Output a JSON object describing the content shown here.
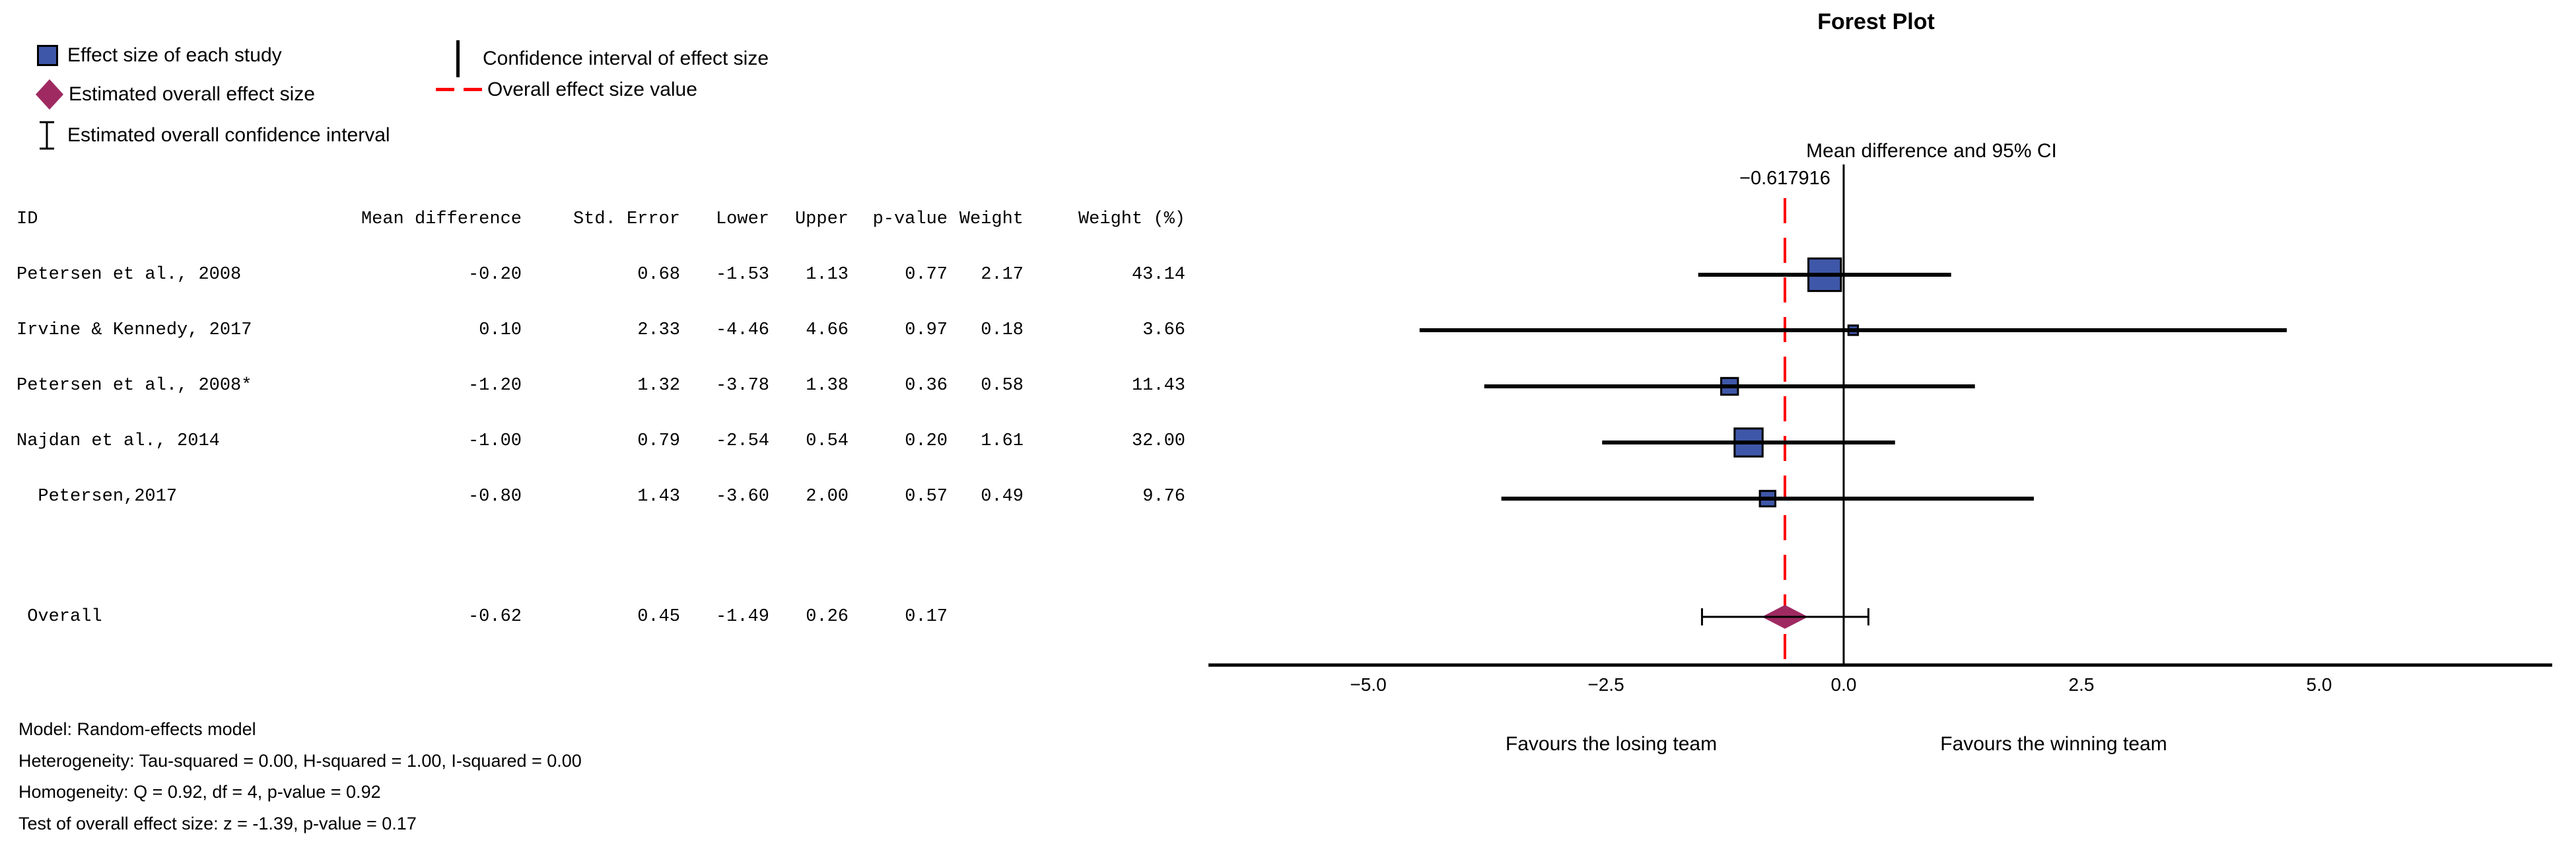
{
  "colors": {
    "study_marker": "#3f57a8",
    "marker_border": "#000000",
    "overall_diamond": "#9f2a62",
    "overall_effect_line": "#ff0000",
    "axis": "#000000"
  },
  "legend": {
    "items": [
      {
        "icon": "blue-square-icon",
        "label": "Effect size of each study"
      },
      {
        "icon": "maroon-diamond-icon",
        "label": "Estimated overall effect size"
      },
      {
        "icon": "i-beam-icon",
        "label": "Estimated overall confidence interval"
      },
      {
        "icon": "vertical-line-icon",
        "label": "Confidence interval of effect size"
      },
      {
        "icon": "red-dashed-line-icon",
        "label": "Overall effect size value"
      }
    ]
  },
  "table": {
    "headers": [
      "ID",
      "Mean difference",
      "Std. Error",
      "Lower",
      "Upper",
      "p-value",
      "Weight",
      "Weight (%)"
    ]
  },
  "stats": {
    "lines": [
      "Model: Random-effects model",
      "Heterogeneity: Tau-squared = 0.00, H-squared = 1.00, I-squared = 0.00",
      "Homogeneity: Q = 0.92, df = 4, p-value = 0.92",
      "Test of overall effect size: z = -1.39, p-value = 0.17"
    ]
  },
  "chart_data": {
    "type": "scatter",
    "subtype": "forest-plot",
    "title": "Forest Plot",
    "effect_label": "Mean difference and 95% CI",
    "overall_value_label": "−0.617916",
    "overall_value": -0.617916,
    "xlabel": "",
    "ylabel": "",
    "xlim": [
      -6.7,
      7.45
    ],
    "grid": false,
    "x_ticks": [
      {
        "value": -5.0,
        "label": "−5.0"
      },
      {
        "value": -2.5,
        "label": "−2.5"
      },
      {
        "value": 0.0,
        "label": "0.0"
      },
      {
        "value": 2.5,
        "label": "2.5"
      },
      {
        "value": 5.0,
        "label": "5.0"
      }
    ],
    "favours_left": "Favours the losing team",
    "favours_right": "Favours the winning team",
    "studies": [
      {
        "id": "Petersen et al., 2008",
        "mean": -0.2,
        "std_error": 0.68,
        "lower": -1.53,
        "upper": 1.13,
        "p_value": 0.77,
        "weight": 2.17,
        "weight_pct": 43.14
      },
      {
        "id": "Irvine & Kennedy, 2017",
        "mean": 0.1,
        "std_error": 2.33,
        "lower": -4.46,
        "upper": 4.66,
        "p_value": 0.97,
        "weight": 0.18,
        "weight_pct": 3.66
      },
      {
        "id": "Petersen et al., 2008*",
        "mean": -1.2,
        "std_error": 1.32,
        "lower": -3.78,
        "upper": 1.38,
        "p_value": 0.36,
        "weight": 0.58,
        "weight_pct": 11.43
      },
      {
        "id": "Najdan et al., 2014",
        "mean": -1.0,
        "std_error": 0.79,
        "lower": -2.54,
        "upper": 0.54,
        "p_value": 0.2,
        "weight": 1.61,
        "weight_pct": 32.0
      },
      {
        "id": "  Petersen,2017",
        "mean": -0.8,
        "std_error": 1.43,
        "lower": -3.6,
        "upper": 2.0,
        "p_value": 0.57,
        "weight": 0.49,
        "weight_pct": 9.76
      }
    ],
    "overall": {
      "id": " Overall",
      "mean": -0.62,
      "std_error": 0.45,
      "lower": -1.49,
      "upper": 0.26,
      "p_value": 0.17
    }
  }
}
